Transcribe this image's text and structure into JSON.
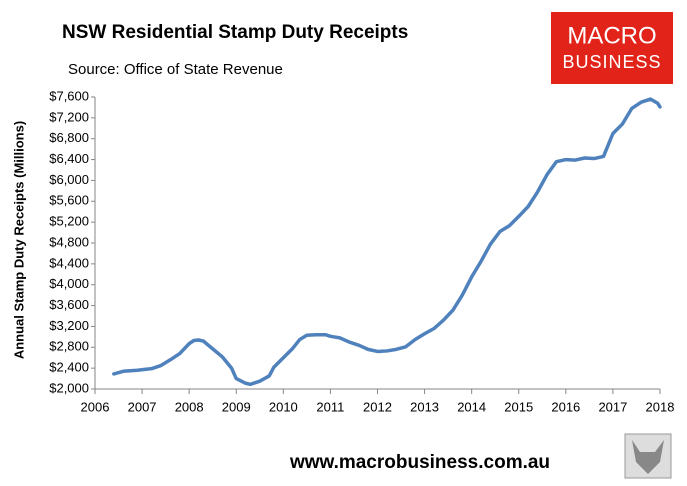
{
  "chart_data": {
    "type": "line",
    "title": "NSW Residential Stamp Duty Receipts",
    "subtitle": "Source: Office of State Revenue",
    "y_label": "Annual Stamp Duty Receipts (Millions)",
    "logo": [
      "MACRO",
      "BUSINESS"
    ],
    "footer": "www.macrobusiness.com.au",
    "x": [
      2006.4,
      2006.6,
      2006.9,
      2007.2,
      2007.4,
      2007.6,
      2007.8,
      2008.0,
      2008.1,
      2008.2,
      2008.3,
      2008.5,
      2008.7,
      2008.9,
      2009.0,
      2009.2,
      2009.3,
      2009.5,
      2009.7,
      2009.8,
      2010.0,
      2010.2,
      2010.35,
      2010.5,
      2010.7,
      2010.9,
      2011.0,
      2011.2,
      2011.4,
      2011.6,
      2011.8,
      2012.0,
      2012.2,
      2012.4,
      2012.6,
      2012.8,
      2013.0,
      2013.2,
      2013.4,
      2013.6,
      2013.8,
      2014.0,
      2014.2,
      2014.4,
      2014.6,
      2014.8,
      2015.0,
      2015.2,
      2015.4,
      2015.6,
      2015.8,
      2016.0,
      2016.2,
      2016.4,
      2016.6,
      2016.8,
      2017.0,
      2017.2,
      2017.4,
      2017.6,
      2017.8,
      2017.95,
      2018.0
    ],
    "series": [
      {
        "name": "NSW Residential Stamp Duty",
        "color": "#4f81bd",
        "values": [
          2290,
          2340,
          2360,
          2390,
          2450,
          2560,
          2680,
          2870,
          2930,
          2940,
          2920,
          2770,
          2620,
          2400,
          2200,
          2110,
          2090,
          2150,
          2250,
          2420,
          2600,
          2780,
          2950,
          3030,
          3040,
          3040,
          3010,
          2980,
          2900,
          2840,
          2760,
          2720,
          2730,
          2760,
          2810,
          2950,
          3060,
          3160,
          3320,
          3510,
          3800,
          4150,
          4450,
          4780,
          5020,
          5130,
          5310,
          5500,
          5780,
          6110,
          6360,
          6400,
          6390,
          6430,
          6420,
          6460,
          6900,
          7080,
          7380,
          7500,
          7560,
          7480,
          7410
        ]
      }
    ],
    "xlim": [
      2006,
      2018
    ],
    "xticks": [
      2006,
      2007,
      2008,
      2009,
      2010,
      2011,
      2012,
      2013,
      2014,
      2015,
      2016,
      2017,
      2018
    ],
    "ylim": [
      2000,
      7600
    ],
    "yticks": [
      {
        "value": 2000,
        "label": "$2,000"
      },
      {
        "value": 2400,
        "label": "$2,400"
      },
      {
        "value": 2800,
        "label": "$2,800"
      },
      {
        "value": 3200,
        "label": "$3,200"
      },
      {
        "value": 3600,
        "label": "$3,600"
      },
      {
        "value": 4000,
        "label": "$4,000"
      },
      {
        "value": 4400,
        "label": "$4,400"
      },
      {
        "value": 4800,
        "label": "$4,800"
      },
      {
        "value": 5200,
        "label": "$5,200"
      },
      {
        "value": 5600,
        "label": "$5,600"
      },
      {
        "value": 6000,
        "label": "$6,000"
      },
      {
        "value": 6400,
        "label": "$6,400"
      },
      {
        "value": 6800,
        "label": "$6,800"
      },
      {
        "value": 7200,
        "label": "$7,200"
      },
      {
        "value": 7600,
        "label": "$7,600"
      }
    ],
    "grid": false
  }
}
